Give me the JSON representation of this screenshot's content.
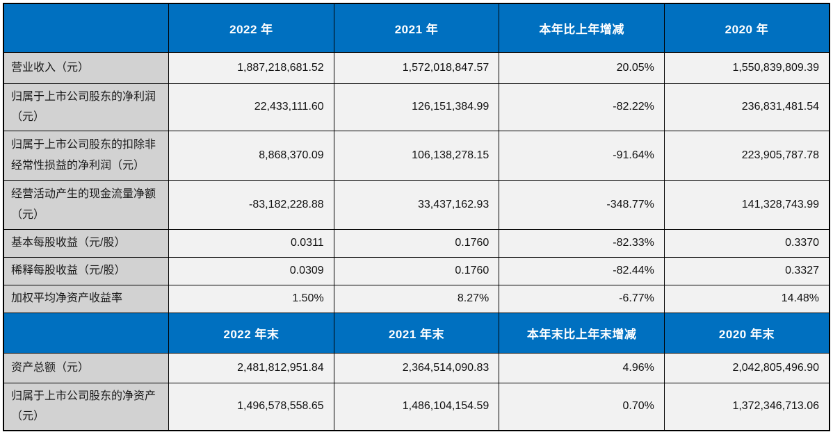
{
  "colors": {
    "header_bg": "#0070C0",
    "header_text": "#ffffff",
    "label_bg": "#d2d2d2",
    "value_bg": "#f2f2f2",
    "border": "#000000"
  },
  "table": {
    "type": "table",
    "section_yearly": {
      "header": {
        "corner": "",
        "cols": [
          "2022 年",
          "2021 年",
          "本年比上年增减",
          "2020 年"
        ]
      },
      "rows": [
        {
          "label": "营业收入（元）",
          "values": [
            "1,887,218,681.52",
            "1,572,018,847.57",
            "20.05%",
            "1,550,839,809.39"
          ]
        },
        {
          "label": "归属于上市公司股东的净利润（元）",
          "values": [
            "22,433,111.60",
            "126,151,384.99",
            "-82.22%",
            "236,831,481.54"
          ]
        },
        {
          "label": "归属于上市公司股东的扣除非经常性损益的净利润（元）",
          "values": [
            "8,868,370.09",
            "106,138,278.15",
            "-91.64%",
            "223,905,787.78"
          ]
        },
        {
          "label": "经营活动产生的现金流量净额（元）",
          "values": [
            "-83,182,228.88",
            "33,437,162.93",
            "-348.77%",
            "141,328,743.99"
          ]
        },
        {
          "label": "基本每股收益（元/股）",
          "values": [
            "0.0311",
            "0.1760",
            "-82.33%",
            "0.3370"
          ]
        },
        {
          "label": "稀释每股收益（元/股）",
          "values": [
            "0.0309",
            "0.1760",
            "-82.44%",
            "0.3327"
          ]
        },
        {
          "label": "加权平均净资产收益率",
          "values": [
            "1.50%",
            "8.27%",
            "-6.77%",
            "14.48%"
          ]
        }
      ]
    },
    "section_yearend": {
      "header": {
        "corner": "",
        "cols": [
          "2022 年末",
          "2021 年末",
          "本年末比上年末增减",
          "2020 年末"
        ]
      },
      "rows": [
        {
          "label": "资产总额（元）",
          "values": [
            "2,481,812,951.84",
            "2,364,514,090.83",
            "4.96%",
            "2,042,805,496.90"
          ]
        },
        {
          "label": "归属于上市公司股东的净资产（元）",
          "values": [
            "1,496,578,558.65",
            "1,486,104,154.59",
            "0.70%",
            "1,372,346,713.06"
          ]
        }
      ]
    }
  }
}
